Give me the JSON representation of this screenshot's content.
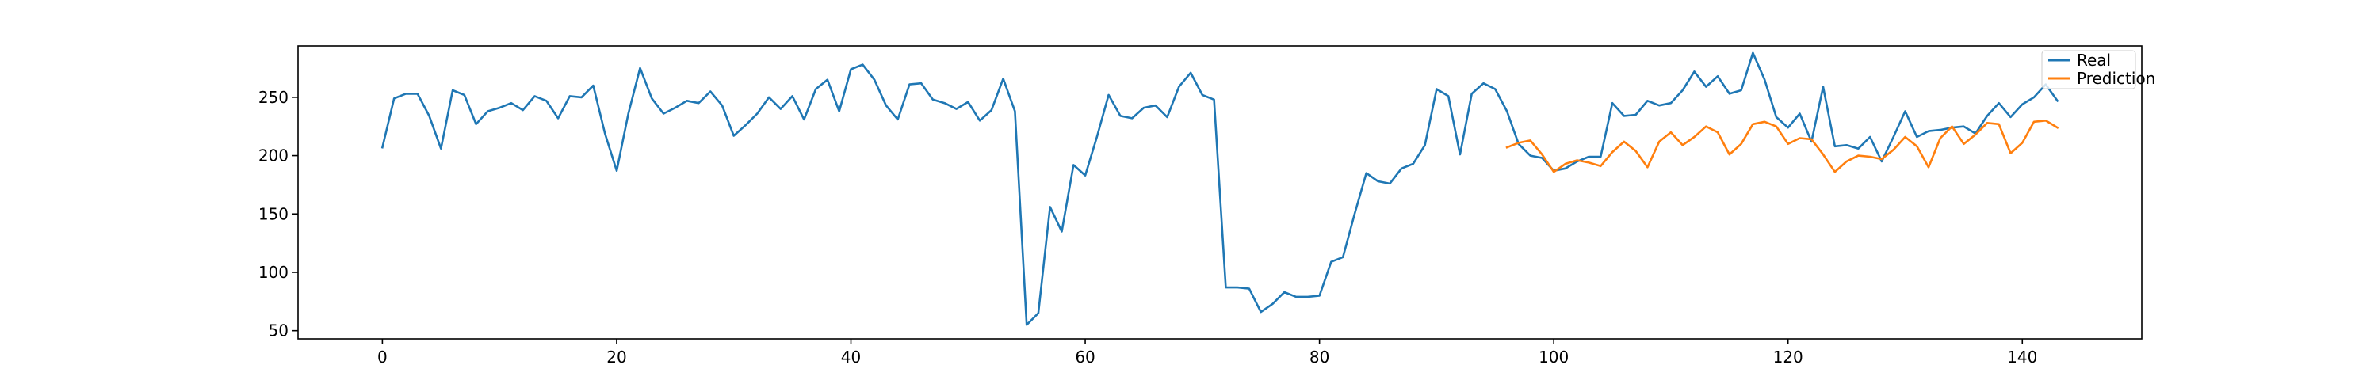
{
  "chart_data": {
    "type": "line",
    "title": "",
    "xlabel": "",
    "ylabel": "",
    "xlim": [
      -7.2,
      150.2
    ],
    "ylim": [
      43,
      294
    ],
    "xticks": [
      0,
      20,
      40,
      60,
      80,
      100,
      120,
      140
    ],
    "yticks": [
      50,
      100,
      150,
      200,
      250
    ],
    "grid": false,
    "legend_position": "top-right",
    "series": [
      {
        "name": "Real",
        "color": "#1f77b4",
        "x_start": 0,
        "values": [
          207,
          249,
          253,
          253,
          234,
          206,
          256,
          252,
          227,
          238,
          241,
          245,
          239,
          251,
          247,
          232,
          251,
          250,
          260,
          219,
          187,
          236,
          275,
          249,
          236,
          241,
          247,
          245,
          255,
          243,
          217,
          226,
          236,
          250,
          240,
          251,
          231,
          257,
          265,
          238,
          274,
          278,
          265,
          243,
          231,
          261,
          262,
          248,
          245,
          240,
          246,
          230,
          239,
          266,
          238,
          55,
          65,
          156,
          135,
          192,
          183,
          216,
          252,
          234,
          232,
          241,
          243,
          233,
          259,
          271,
          252,
          248,
          87,
          87,
          86,
          66,
          73,
          83,
          79,
          79,
          80,
          109,
          113,
          150,
          185,
          178,
          176,
          189,
          193,
          209,
          257,
          251,
          201,
          253,
          262,
          257,
          238,
          210,
          200,
          198,
          187,
          189,
          195,
          199,
          199,
          245,
          234,
          235,
          247,
          243,
          245,
          256,
          272,
          259,
          268,
          253,
          256,
          288,
          265,
          233,
          224,
          236,
          212,
          259,
          208,
          209,
          206,
          216,
          195,
          216,
          238,
          216,
          221,
          222,
          224,
          225,
          219,
          234,
          245,
          233,
          244,
          250,
          261,
          247
        ]
      },
      {
        "name": "Prediction",
        "color": "#ff7f0e",
        "x_start": 96,
        "values": [
          207,
          211,
          213,
          201,
          186,
          193,
          196,
          194,
          191,
          203,
          212,
          204,
          190,
          212,
          220,
          209,
          216,
          225,
          220,
          201,
          210,
          227,
          229,
          225,
          210,
          215,
          214,
          201,
          186,
          195,
          200,
          199,
          197,
          205,
          216,
          208,
          190,
          215,
          225,
          210,
          218,
          228,
          227,
          202,
          211,
          229,
          230,
          224
        ]
      }
    ]
  }
}
